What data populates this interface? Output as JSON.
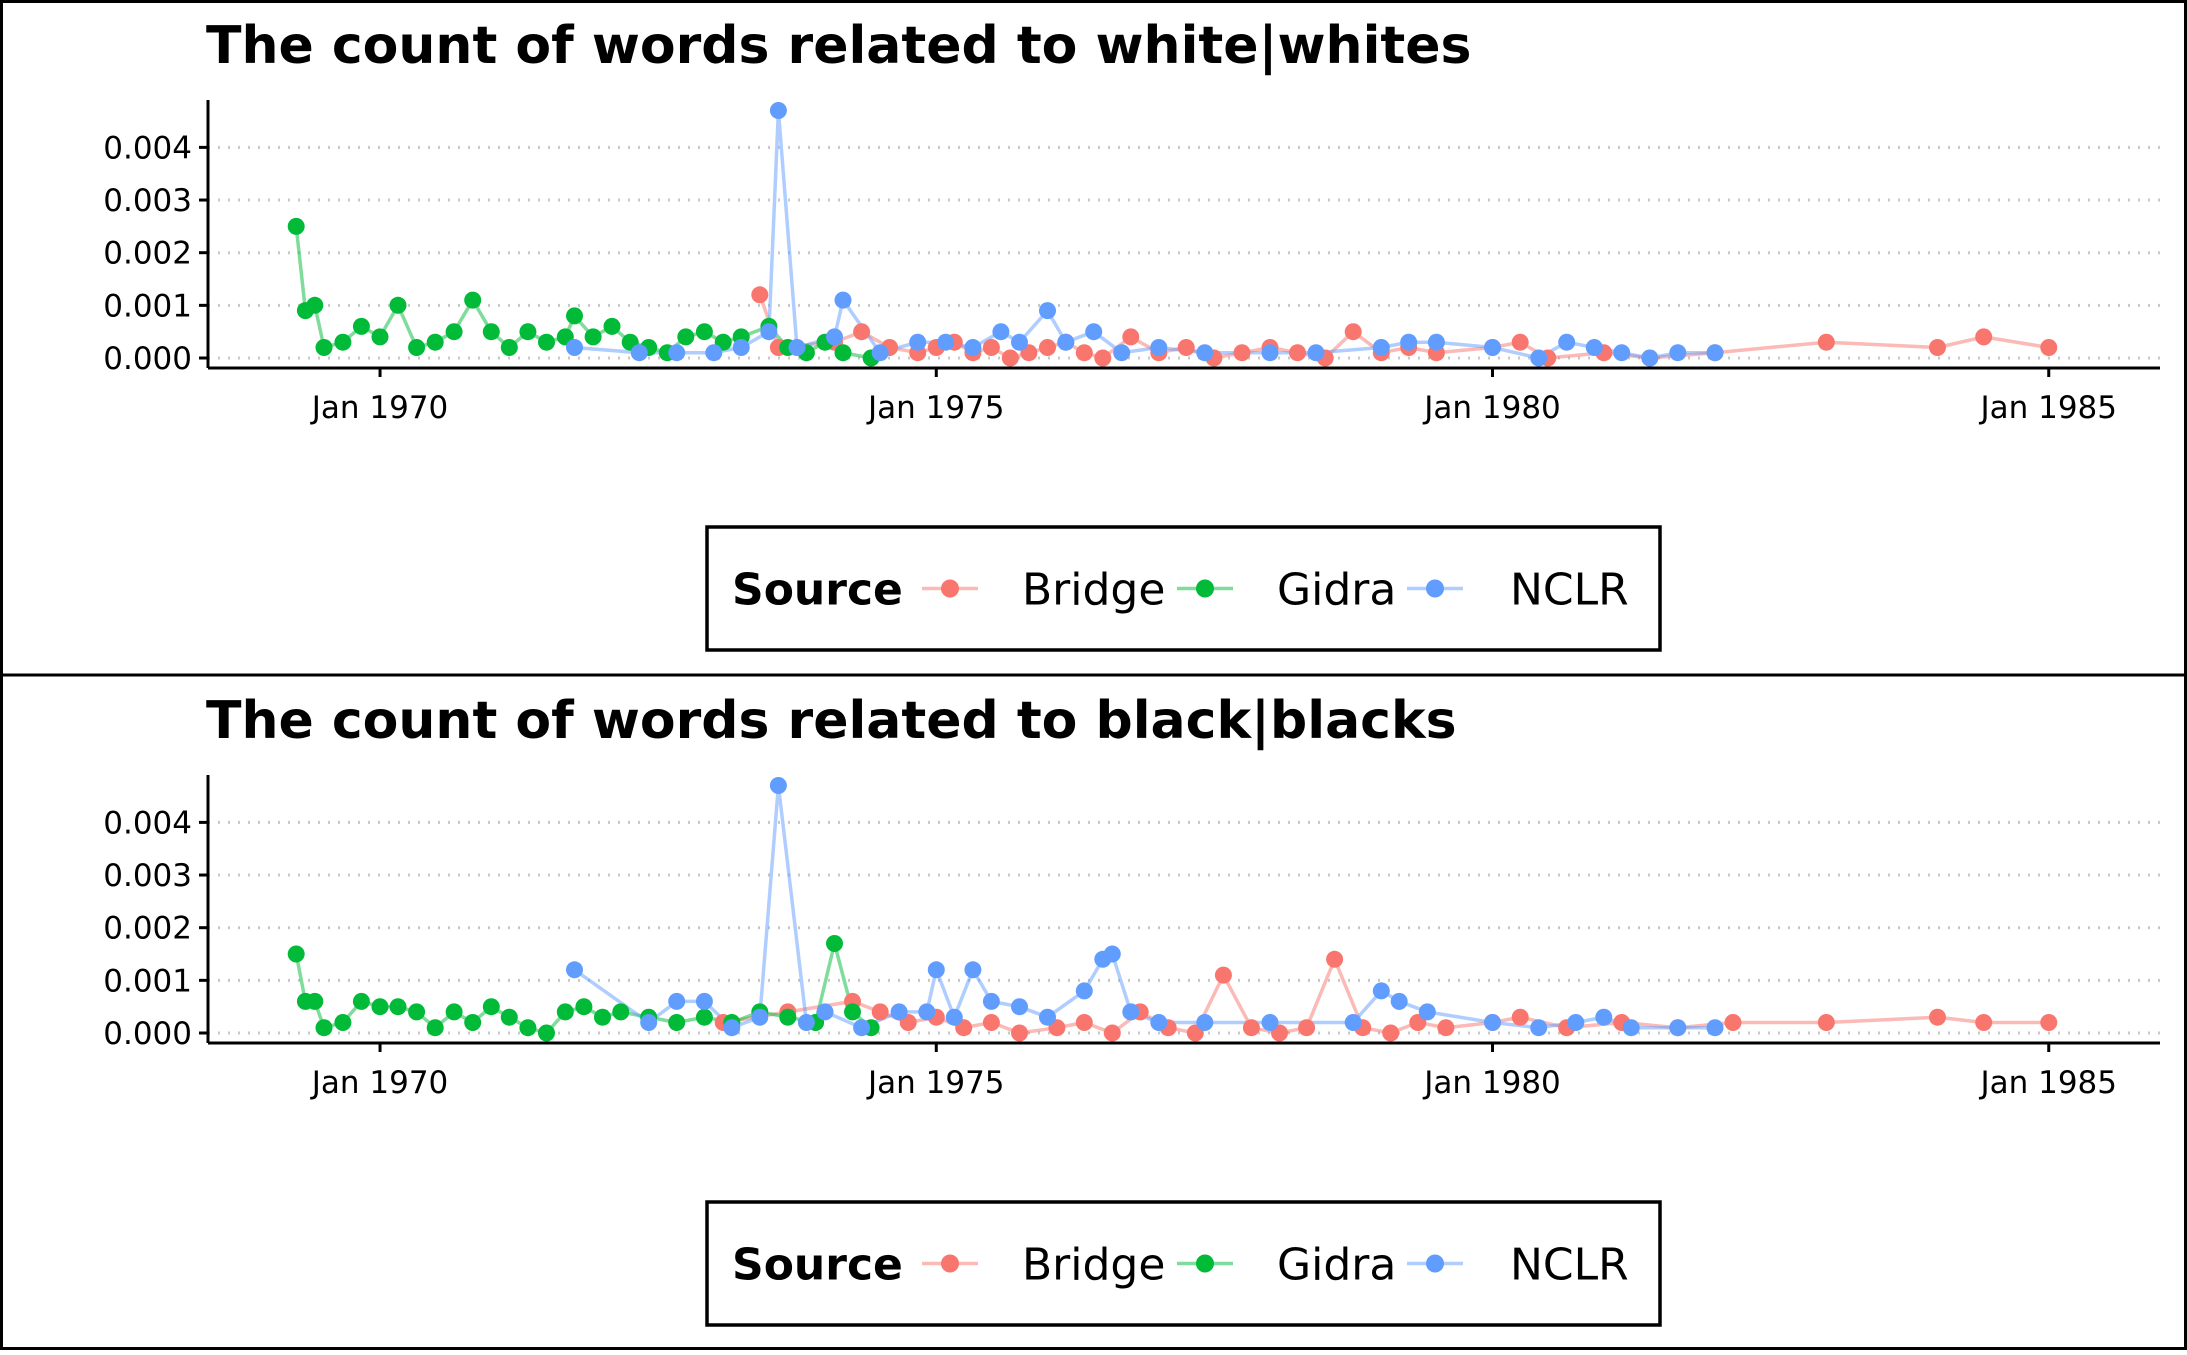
{
  "chart_data": [
    {
      "type": "line",
      "title": "The count of words related to white|whites",
      "xlabel": "",
      "ylabel": "",
      "x_ticks": [
        "Jan 1970",
        "Jan 1975",
        "Jan 1980",
        "Jan 1985"
      ],
      "y_ticks": [
        "0.000",
        "0.001",
        "0.002",
        "0.003",
        "0.004"
      ],
      "xlim": [
        "1968-06-15",
        "1986-01-01"
      ],
      "ylim": [
        0,
        0.0049
      ],
      "grid": "horizontal dotted",
      "legend": {
        "title": "Source",
        "position": "bottom"
      },
      "series": [
        {
          "name": "Bridge",
          "color": "#F8766D",
          "points": [
            [
              "1973-06-01",
              0.0012
            ],
            [
              "1973-08-01",
              0.0002
            ],
            [
              "1974-02-01",
              0.0003
            ],
            [
              "1974-05-01",
              0.0005
            ],
            [
              "1974-08-01",
              0.0002
            ],
            [
              "1974-11-01",
              0.0001
            ],
            [
              "1975-01-01",
              0.0002
            ],
            [
              "1975-03-01",
              0.0003
            ],
            [
              "1975-05-01",
              0.0001
            ],
            [
              "1975-07-01",
              0.0002
            ],
            [
              "1975-09-01",
              0.0
            ],
            [
              "1975-11-01",
              0.0001
            ],
            [
              "1976-01-01",
              0.0002
            ],
            [
              "1976-03-01",
              0.0003
            ],
            [
              "1976-05-01",
              0.0001
            ],
            [
              "1976-07-01",
              0.0
            ],
            [
              "1976-10-01",
              0.0004
            ],
            [
              "1977-01-01",
              0.0001
            ],
            [
              "1977-04-01",
              0.0002
            ],
            [
              "1977-07-01",
              0.0
            ],
            [
              "1977-10-01",
              0.0001
            ],
            [
              "1978-01-01",
              0.0002
            ],
            [
              "1978-04-01",
              0.0001
            ],
            [
              "1978-07-01",
              0.0
            ],
            [
              "1978-10-01",
              0.0005
            ],
            [
              "1979-01-01",
              0.0001
            ],
            [
              "1979-04-01",
              0.0002
            ],
            [
              "1979-07-01",
              0.0001
            ],
            [
              "1980-01-01",
              0.0002
            ],
            [
              "1980-04-01",
              0.0003
            ],
            [
              "1980-07-01",
              0.0
            ],
            [
              "1981-01-01",
              0.0001
            ],
            [
              "1981-06-01",
              0.0
            ],
            [
              "1982-01-01",
              0.0001
            ],
            [
              "1983-01-01",
              0.0003
            ],
            [
              "1984-01-01",
              0.0002
            ],
            [
              "1984-06-01",
              0.0004
            ],
            [
              "1985-01-01",
              0.0002
            ]
          ]
        },
        {
          "name": "Gidra",
          "color": "#00BA38",
          "points": [
            [
              "1969-04-01",
              0.0025
            ],
            [
              "1969-05-01",
              0.0009
            ],
            [
              "1969-06-01",
              0.001
            ],
            [
              "1969-07-01",
              0.0002
            ],
            [
              "1969-09-01",
              0.0003
            ],
            [
              "1969-11-01",
              0.0006
            ],
            [
              "1970-01-01",
              0.0004
            ],
            [
              "1970-03-01",
              0.001
            ],
            [
              "1970-05-01",
              0.0002
            ],
            [
              "1970-07-01",
              0.0003
            ],
            [
              "1970-09-01",
              0.0005
            ],
            [
              "1970-11-01",
              0.0011
            ],
            [
              "1971-01-01",
              0.0005
            ],
            [
              "1971-03-01",
              0.0002
            ],
            [
              "1971-05-01",
              0.0005
            ],
            [
              "1971-07-01",
              0.0003
            ],
            [
              "1971-09-01",
              0.0004
            ],
            [
              "1971-10-01",
              0.0008
            ],
            [
              "1971-12-01",
              0.0004
            ],
            [
              "1972-02-01",
              0.0006
            ],
            [
              "1972-04-01",
              0.0003
            ],
            [
              "1972-06-01",
              0.0002
            ],
            [
              "1972-08-01",
              0.0001
            ],
            [
              "1972-10-01",
              0.0004
            ],
            [
              "1972-12-01",
              0.0005
            ],
            [
              "1973-02-01",
              0.0003
            ],
            [
              "1973-04-01",
              0.0004
            ],
            [
              "1973-07-01",
              0.0006
            ],
            [
              "1973-09-01",
              0.0002
            ],
            [
              "1973-11-01",
              0.0001
            ],
            [
              "1974-01-01",
              0.0003
            ],
            [
              "1974-03-01",
              0.0001
            ],
            [
              "1974-06-01",
              0.0
            ]
          ]
        },
        {
          "name": "NCLR",
          "color": "#619CFF",
          "points": [
            [
              "1971-10-01",
              0.0002
            ],
            [
              "1972-05-01",
              0.0001
            ],
            [
              "1972-09-01",
              0.0001
            ],
            [
              "1973-01-01",
              0.0001
            ],
            [
              "1973-04-01",
              0.0002
            ],
            [
              "1973-07-01",
              0.0005
            ],
            [
              "1973-08-01",
              0.0047
            ],
            [
              "1973-10-01",
              0.0002
            ],
            [
              "1974-02-01",
              0.0004
            ],
            [
              "1974-03-01",
              0.0011
            ],
            [
              "1974-07-01",
              0.0001
            ],
            [
              "1974-11-01",
              0.0003
            ],
            [
              "1975-02-01",
              0.0003
            ],
            [
              "1975-05-01",
              0.0002
            ],
            [
              "1975-08-01",
              0.0005
            ],
            [
              "1975-10-01",
              0.0003
            ],
            [
              "1976-01-01",
              0.0009
            ],
            [
              "1976-03-01",
              0.0003
            ],
            [
              "1976-06-01",
              0.0005
            ],
            [
              "1976-09-01",
              0.0001
            ],
            [
              "1977-01-01",
              0.0002
            ],
            [
              "1977-06-01",
              0.0001
            ],
            [
              "1978-01-01",
              0.0001
            ],
            [
              "1978-06-01",
              0.0001
            ],
            [
              "1979-01-01",
              0.0002
            ],
            [
              "1979-04-01",
              0.0003
            ],
            [
              "1979-07-01",
              0.0003
            ],
            [
              "1980-01-01",
              0.0002
            ],
            [
              "1980-06-01",
              0.0
            ],
            [
              "1980-09-01",
              0.0003
            ],
            [
              "1980-12-01",
              0.0002
            ],
            [
              "1981-03-01",
              0.0001
            ],
            [
              "1981-06-01",
              0.0
            ],
            [
              "1981-09-01",
              0.0001
            ],
            [
              "1982-01-01",
              0.0001
            ]
          ]
        }
      ]
    },
    {
      "type": "line",
      "title": "The count of words related to black|blacks",
      "xlabel": "",
      "ylabel": "",
      "x_ticks": [
        "Jan 1970",
        "Jan 1975",
        "Jan 1980",
        "Jan 1985"
      ],
      "y_ticks": [
        "0.000",
        "0.001",
        "0.002",
        "0.003",
        "0.004"
      ],
      "xlim": [
        "1968-06-15",
        "1986-01-01"
      ],
      "ylim": [
        0,
        0.0049
      ],
      "grid": "horizontal dotted",
      "legend": {
        "title": "Source",
        "position": "bottom"
      },
      "series": [
        {
          "name": "Bridge",
          "color": "#F8766D",
          "points": [
            [
              "1973-02-01",
              0.0002
            ],
            [
              "1973-09-01",
              0.0004
            ],
            [
              "1974-04-01",
              0.0006
            ],
            [
              "1974-07-01",
              0.0004
            ],
            [
              "1974-10-01",
              0.0002
            ],
            [
              "1975-01-01",
              0.0003
            ],
            [
              "1975-04-01",
              0.0001
            ],
            [
              "1975-07-01",
              0.0002
            ],
            [
              "1975-10-01",
              0.0
            ],
            [
              "1976-02-01",
              0.0001
            ],
            [
              "1976-05-01",
              0.0002
            ],
            [
              "1976-08-01",
              0.0
            ],
            [
              "1976-11-01",
              0.0004
            ],
            [
              "1977-02-01",
              0.0001
            ],
            [
              "1977-05-01",
              0.0
            ],
            [
              "1977-08-01",
              0.0011
            ],
            [
              "1977-11-01",
              0.0001
            ],
            [
              "1978-02-01",
              0.0
            ],
            [
              "1978-05-01",
              0.0001
            ],
            [
              "1978-08-01",
              0.0014
            ],
            [
              "1978-11-01",
              0.0001
            ],
            [
              "1979-02-01",
              0.0
            ],
            [
              "1979-05-01",
              0.0002
            ],
            [
              "1979-08-01",
              0.0001
            ],
            [
              "1980-01-01",
              0.0002
            ],
            [
              "1980-04-01",
              0.0003
            ],
            [
              "1980-09-01",
              0.0001
            ],
            [
              "1981-03-01",
              0.0002
            ],
            [
              "1981-09-01",
              0.0001
            ],
            [
              "1982-03-01",
              0.0002
            ],
            [
              "1983-01-01",
              0.0002
            ],
            [
              "1984-01-01",
              0.0003
            ],
            [
              "1984-06-01",
              0.0002
            ],
            [
              "1985-01-01",
              0.0002
            ]
          ]
        },
        {
          "name": "Gidra",
          "color": "#00BA38",
          "points": [
            [
              "1969-04-01",
              0.0015
            ],
            [
              "1969-05-01",
              0.0006
            ],
            [
              "1969-06-01",
              0.0006
            ],
            [
              "1969-07-01",
              0.0001
            ],
            [
              "1969-09-01",
              0.0002
            ],
            [
              "1969-11-01",
              0.0006
            ],
            [
              "1970-01-01",
              0.0005
            ],
            [
              "1970-03-01",
              0.0005
            ],
            [
              "1970-05-01",
              0.0004
            ],
            [
              "1970-07-01",
              0.0001
            ],
            [
              "1970-09-01",
              0.0004
            ],
            [
              "1970-11-01",
              0.0002
            ],
            [
              "1971-01-01",
              0.0005
            ],
            [
              "1971-03-01",
              0.0003
            ],
            [
              "1971-05-01",
              0.0001
            ],
            [
              "1971-07-01",
              0.0
            ],
            [
              "1971-09-01",
              0.0004
            ],
            [
              "1971-11-01",
              0.0005
            ],
            [
              "1972-01-01",
              0.0003
            ],
            [
              "1972-03-01",
              0.0004
            ],
            [
              "1972-06-01",
              0.0003
            ],
            [
              "1972-09-01",
              0.0002
            ],
            [
              "1972-12-01",
              0.0003
            ],
            [
              "1973-03-01",
              0.0002
            ],
            [
              "1973-06-01",
              0.0004
            ],
            [
              "1973-09-01",
              0.0003
            ],
            [
              "1973-12-01",
              0.0002
            ],
            [
              "1974-02-01",
              0.0017
            ],
            [
              "1974-04-01",
              0.0004
            ],
            [
              "1974-06-01",
              0.0001
            ]
          ]
        },
        {
          "name": "NCLR",
          "color": "#619CFF",
          "points": [
            [
              "1971-10-01",
              0.0012
            ],
            [
              "1972-06-01",
              0.0002
            ],
            [
              "1972-09-01",
              0.0006
            ],
            [
              "1972-12-01",
              0.0006
            ],
            [
              "1973-03-01",
              0.0001
            ],
            [
              "1973-06-01",
              0.0003
            ],
            [
              "1973-08-01",
              0.0047
            ],
            [
              "1973-11-01",
              0.0002
            ],
            [
              "1974-01-01",
              0.0004
            ],
            [
              "1974-05-01",
              0.0001
            ],
            [
              "1974-09-01",
              0.0004
            ],
            [
              "1974-12-01",
              0.0004
            ],
            [
              "1975-01-01",
              0.0012
            ],
            [
              "1975-03-01",
              0.0003
            ],
            [
              "1975-05-01",
              0.0012
            ],
            [
              "1975-07-01",
              0.0006
            ],
            [
              "1975-10-01",
              0.0005
            ],
            [
              "1976-01-01",
              0.0003
            ],
            [
              "1976-05-01",
              0.0008
            ],
            [
              "1976-07-01",
              0.0014
            ],
            [
              "1976-08-01",
              0.0015
            ],
            [
              "1976-10-01",
              0.0004
            ],
            [
              "1977-01-01",
              0.0002
            ],
            [
              "1977-06-01",
              0.0002
            ],
            [
              "1978-01-01",
              0.0002
            ],
            [
              "1978-10-01",
              0.0002
            ],
            [
              "1979-01-01",
              0.0008
            ],
            [
              "1979-03-01",
              0.0006
            ],
            [
              "1979-06-01",
              0.0004
            ],
            [
              "1980-01-01",
              0.0002
            ],
            [
              "1980-06-01",
              0.0001
            ],
            [
              "1980-10-01",
              0.0002
            ],
            [
              "1981-01-01",
              0.0003
            ],
            [
              "1981-04-01",
              0.0001
            ],
            [
              "1981-09-01",
              0.0001
            ],
            [
              "1982-01-01",
              0.0001
            ]
          ]
        }
      ]
    }
  ]
}
